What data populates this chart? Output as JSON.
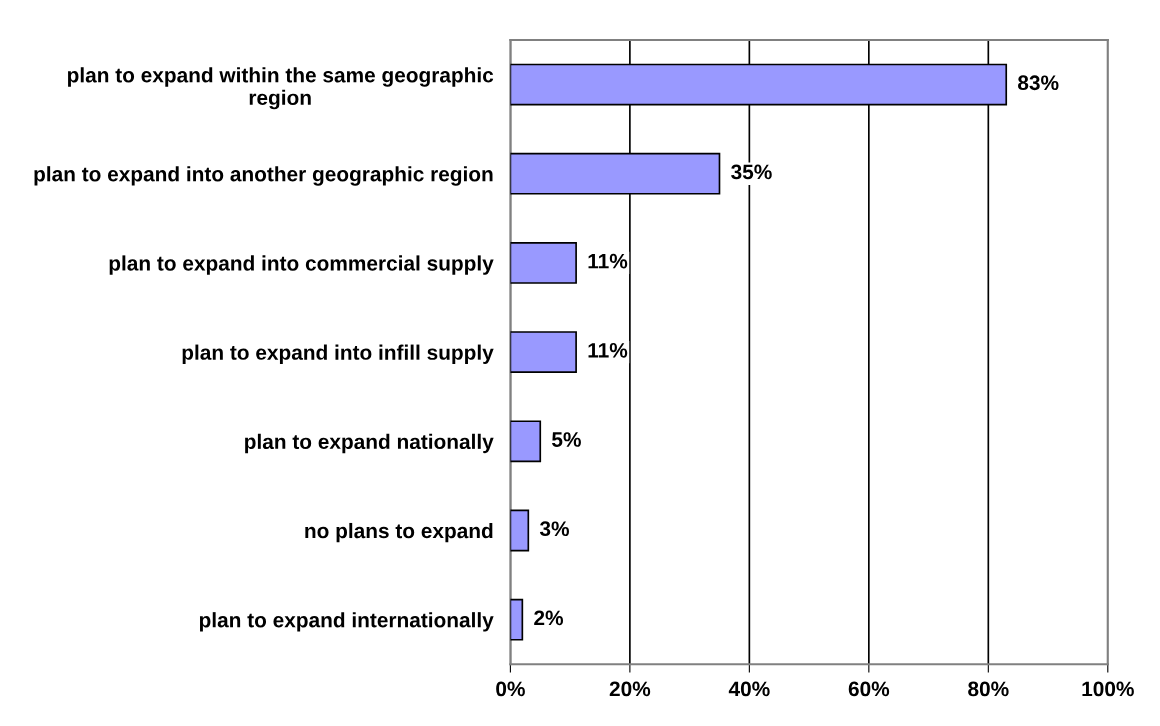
{
  "chart_data": {
    "type": "bar",
    "orientation": "horizontal",
    "categories": [
      "plan to expand within the same geographic region",
      "plan to expand into another geographic region",
      "plan to expand into commercial supply",
      "plan to expand into infill supply",
      "plan to expand nationally",
      "no plans to expand",
      "plan to expand internationally"
    ],
    "values": [
      83,
      35,
      11,
      11,
      5,
      3,
      2
    ],
    "value_labels": [
      "83%",
      "35%",
      "11%",
      "11%",
      "5%",
      "3%",
      "2%"
    ],
    "color": "#9999ff",
    "xlim": [
      0,
      100
    ],
    "xticks": [
      {
        "value": 0,
        "label": "0%"
      },
      {
        "value": 20,
        "label": "20%"
      },
      {
        "value": 40,
        "label": "40%"
      },
      {
        "value": 60,
        "label": "60%"
      },
      {
        "value": 80,
        "label": "80%"
      },
      {
        "value": 100,
        "label": "100%"
      }
    ],
    "grid": "x"
  }
}
